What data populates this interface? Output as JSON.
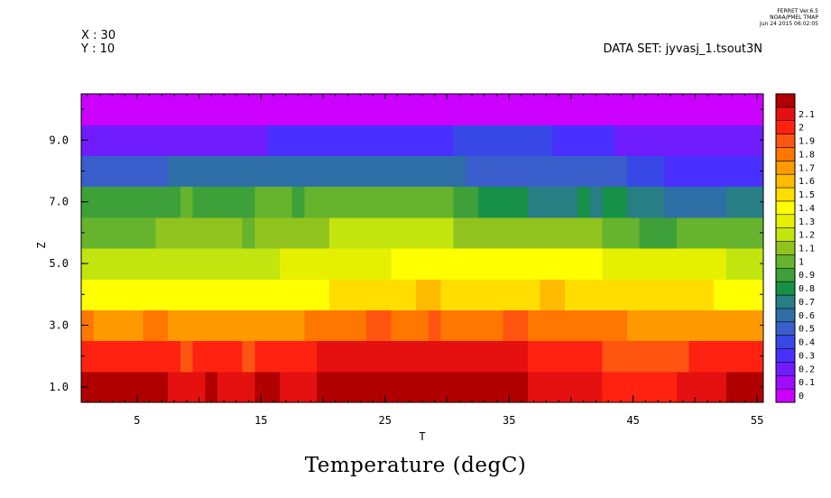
{
  "header": {
    "stamp_line1": "FERRET Ver.6.5",
    "stamp_line2": "NOAA/PMEL TMAP",
    "stamp_line3": "Jun 24 2015 06:02:05",
    "x_label": "X : 30",
    "y_label": "Y : 10",
    "dataset": "DATA SET: jyvasj_1.tsout3N"
  },
  "chart_data": {
    "type": "heatmap",
    "title": "Temperature (degC)",
    "xlabel": "T",
    "ylabel": "Z",
    "xlim": [
      0.5,
      55.5
    ],
    "ylim": [
      0.5,
      10.5
    ],
    "x_ticks": [
      5,
      15,
      25,
      35,
      45,
      55
    ],
    "x_tick_labels": [
      "5",
      "15",
      "25",
      "35",
      "45",
      "55"
    ],
    "y_ticks": [
      1,
      3,
      5,
      7,
      9
    ],
    "y_tick_labels": [
      "1.0",
      "3.0",
      "5.0",
      "7.0",
      "9.0"
    ],
    "z_levels": [
      0,
      0.1,
      0.2,
      0.3,
      0.4,
      0.5,
      0.6,
      0.7,
      0.8,
      0.9,
      1,
      1.1,
      1.2,
      1.3,
      1.4,
      1.5,
      1.6,
      1.7,
      1.8,
      1.9,
      2,
      2.1
    ],
    "colorbar_labels": [
      "0",
      "0.1",
      "0.2",
      "0.3",
      "0.4",
      "0.5",
      "0.6",
      "0.7",
      "0.8",
      "0.9",
      "1",
      "1.1",
      "1.2",
      "1.3",
      "1.4",
      "1.5",
      "1.6",
      "1.7",
      "1.8",
      "1.9",
      "2",
      "2.1"
    ],
    "colorbar_colors": [
      "#cc00ff",
      "#9f0cff",
      "#6f1cff",
      "#4930ff",
      "#3848e6",
      "#3a5fcc",
      "#2e6fa8",
      "#277f84",
      "#179147",
      "#3da039",
      "#66b32d",
      "#91c31f",
      "#c2e40f",
      "#e5f000",
      "#ffff00",
      "#ffdd00",
      "#ffbb00",
      "#ff9900",
      "#ff7700",
      "#ff5511",
      "#ff2211",
      "#e51010",
      "#b00000"
    ],
    "rows": [
      {
        "z": 1,
        "segments": [
          {
            "x0": 0.5,
            "x1": 7.5,
            "v": 2.15
          },
          {
            "x0": 7.5,
            "x1": 10.5,
            "v": 2.05
          },
          {
            "x0": 10.5,
            "x1": 11.5,
            "v": 2.15
          },
          {
            "x0": 11.5,
            "x1": 14.5,
            "v": 2.05
          },
          {
            "x0": 14.5,
            "x1": 16.5,
            "v": 2.15
          },
          {
            "x0": 16.5,
            "x1": 19.5,
            "v": 2.05
          },
          {
            "x0": 19.5,
            "x1": 24.5,
            "v": 2.15
          },
          {
            "x0": 24.5,
            "x1": 25.5,
            "v": 2.25
          },
          {
            "x0": 25.5,
            "x1": 36.5,
            "v": 2.15
          },
          {
            "x0": 36.5,
            "x1": 42.5,
            "v": 2.05
          },
          {
            "x0": 42.5,
            "x1": 48.5,
            "v": 1.95
          },
          {
            "x0": 48.5,
            "x1": 52.5,
            "v": 2.05
          },
          {
            "x0": 52.5,
            "x1": 55.5,
            "v": 2.15
          }
        ]
      },
      {
        "z": 2,
        "segments": [
          {
            "x0": 0.5,
            "x1": 8.5,
            "v": 1.95
          },
          {
            "x0": 8.5,
            "x1": 9.5,
            "v": 1.85
          },
          {
            "x0": 9.5,
            "x1": 13.5,
            "v": 1.95
          },
          {
            "x0": 13.5,
            "x1": 14.5,
            "v": 1.85
          },
          {
            "x0": 14.5,
            "x1": 19.5,
            "v": 1.95
          },
          {
            "x0": 19.5,
            "x1": 36.5,
            "v": 2.0
          },
          {
            "x0": 36.5,
            "x1": 42.5,
            "v": 1.95
          },
          {
            "x0": 42.5,
            "x1": 49.5,
            "v": 1.85
          },
          {
            "x0": 49.5,
            "x1": 55.5,
            "v": 1.95
          }
        ]
      },
      {
        "z": 3,
        "segments": [
          {
            "x0": 0.5,
            "x1": 1.5,
            "v": 1.75
          },
          {
            "x0": 1.5,
            "x1": 5.5,
            "v": 1.65
          },
          {
            "x0": 5.5,
            "x1": 7.5,
            "v": 1.75
          },
          {
            "x0": 7.5,
            "x1": 18.5,
            "v": 1.65
          },
          {
            "x0": 18.5,
            "x1": 23.5,
            "v": 1.75
          },
          {
            "x0": 23.5,
            "x1": 25.5,
            "v": 1.85
          },
          {
            "x0": 25.5,
            "x1": 28.5,
            "v": 1.75
          },
          {
            "x0": 28.5,
            "x1": 29.5,
            "v": 1.85
          },
          {
            "x0": 29.5,
            "x1": 34.5,
            "v": 1.75
          },
          {
            "x0": 34.5,
            "x1": 36.5,
            "v": 1.85
          },
          {
            "x0": 36.5,
            "x1": 44.5,
            "v": 1.75
          },
          {
            "x0": 44.5,
            "x1": 55.5,
            "v": 1.65
          }
        ]
      },
      {
        "z": 4,
        "segments": [
          {
            "x0": 0.5,
            "x1": 20.5,
            "v": 1.35
          },
          {
            "x0": 20.5,
            "x1": 27.5,
            "v": 1.45
          },
          {
            "x0": 27.5,
            "x1": 29.5,
            "v": 1.55
          },
          {
            "x0": 29.5,
            "x1": 37.5,
            "v": 1.45
          },
          {
            "x0": 37.5,
            "x1": 39.5,
            "v": 1.55
          },
          {
            "x0": 39.5,
            "x1": 51.5,
            "v": 1.45
          },
          {
            "x0": 51.5,
            "x1": 55.5,
            "v": 1.35
          }
        ]
      },
      {
        "z": 5,
        "segments": [
          {
            "x0": 0.5,
            "x1": 16.5,
            "v": 1.15
          },
          {
            "x0": 16.5,
            "x1": 25.5,
            "v": 1.25
          },
          {
            "x0": 25.5,
            "x1": 42.5,
            "v": 1.3
          },
          {
            "x0": 42.5,
            "x1": 52.5,
            "v": 1.25
          },
          {
            "x0": 52.5,
            "x1": 55.5,
            "v": 1.15
          }
        ]
      },
      {
        "z": 6,
        "segments": [
          {
            "x0": 0.5,
            "x1": 6.5,
            "v": 0.95
          },
          {
            "x0": 6.5,
            "x1": 13.5,
            "v": 1.05
          },
          {
            "x0": 13.5,
            "x1": 14.5,
            "v": 0.95
          },
          {
            "x0": 14.5,
            "x1": 20.5,
            "v": 1.05
          },
          {
            "x0": 20.5,
            "x1": 30.5,
            "v": 1.1
          },
          {
            "x0": 30.5,
            "x1": 42.5,
            "v": 1.05
          },
          {
            "x0": 42.5,
            "x1": 45.5,
            "v": 0.95
          },
          {
            "x0": 45.5,
            "x1": 48.5,
            "v": 0.85
          },
          {
            "x0": 48.5,
            "x1": 55.5,
            "v": 0.95
          }
        ]
      },
      {
        "z": 7,
        "segments": [
          {
            "x0": 0.5,
            "x1": 8.5,
            "v": 0.85
          },
          {
            "x0": 8.5,
            "x1": 9.5,
            "v": 0.95
          },
          {
            "x0": 9.5,
            "x1": 14.5,
            "v": 0.85
          },
          {
            "x0": 14.5,
            "x1": 17.5,
            "v": 0.95
          },
          {
            "x0": 17.5,
            "x1": 18.5,
            "v": 0.85
          },
          {
            "x0": 18.5,
            "x1": 30.5,
            "v": 0.95
          },
          {
            "x0": 30.5,
            "x1": 32.5,
            "v": 0.85
          },
          {
            "x0": 32.5,
            "x1": 36.5,
            "v": 0.75
          },
          {
            "x0": 36.5,
            "x1": 40.5,
            "v": 0.65
          },
          {
            "x0": 40.5,
            "x1": 41.5,
            "v": 0.75
          },
          {
            "x0": 41.5,
            "x1": 42.5,
            "v": 0.65
          },
          {
            "x0": 42.5,
            "x1": 44.5,
            "v": 0.75
          },
          {
            "x0": 44.5,
            "x1": 47.5,
            "v": 0.65
          },
          {
            "x0": 47.5,
            "x1": 52.5,
            "v": 0.55
          },
          {
            "x0": 52.5,
            "x1": 55.5,
            "v": 0.65
          }
        ]
      },
      {
        "z": 8,
        "segments": [
          {
            "x0": 0.5,
            "x1": 7.5,
            "v": 0.45
          },
          {
            "x0": 7.5,
            "x1": 31.5,
            "v": 0.55
          },
          {
            "x0": 31.5,
            "x1": 39.5,
            "v": 0.45
          },
          {
            "x0": 39.5,
            "x1": 44.5,
            "v": 0.4
          },
          {
            "x0": 44.5,
            "x1": 47.5,
            "v": 0.35
          },
          {
            "x0": 47.5,
            "x1": 55.5,
            "v": 0.25
          }
        ]
      },
      {
        "z": 9,
        "segments": [
          {
            "x0": 0.5,
            "x1": 15.5,
            "v": 0.15
          },
          {
            "x0": 15.5,
            "x1": 30.5,
            "v": 0.25
          },
          {
            "x0": 30.5,
            "x1": 38.5,
            "v": 0.3
          },
          {
            "x0": 38.5,
            "x1": 43.5,
            "v": 0.25
          },
          {
            "x0": 43.5,
            "x1": 47.5,
            "v": 0.15
          },
          {
            "x0": 47.5,
            "x1": 55.5,
            "v": 0.1
          }
        ]
      },
      {
        "z": 10,
        "segments": [
          {
            "x0": 0.5,
            "x1": 55.5,
            "v": -0.05
          }
        ]
      }
    ]
  }
}
